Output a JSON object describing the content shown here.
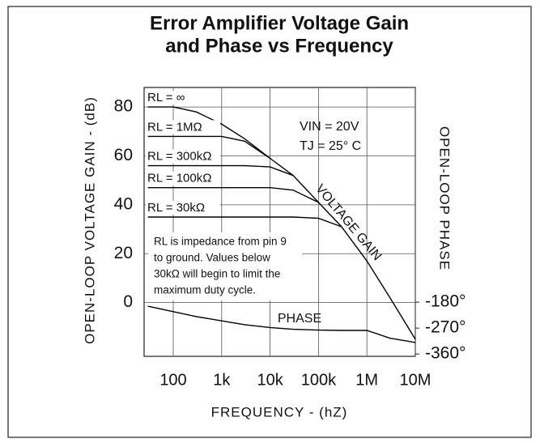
{
  "chart_data": {
    "type": "line",
    "title": "Error Amplifier Voltage Gain",
    "subtitle": "and Phase vs Frequency",
    "x_label": "FREQUENCY  -  (hZ)",
    "y_label": "OPEN-LOOP  VOLTAGE  GAIN  -  (dB)",
    "y2_label": "OPEN-LOOP  PHASE",
    "x_log": true,
    "grid": true,
    "x": [
      30,
      100,
      300,
      1000,
      3000,
      10000,
      30000,
      100000,
      300000,
      1000000,
      3000000,
      10000000
    ],
    "xlim": [
      25,
      10000000
    ],
    "xticks": [
      100,
      {
        "value": 1000,
        "label": "1k"
      },
      {
        "value": 10000,
        "label": "10k"
      },
      {
        "value": 100000,
        "label": "100k"
      },
      {
        "value": 1000000,
        "label": "1M"
      },
      {
        "value": 10000000,
        "label": "10M"
      }
    ],
    "ylim": [
      -22,
      88
    ],
    "yticks": [
      0,
      20,
      40,
      60,
      80
    ],
    "y2lim": [
      -368,
      565
    ],
    "y2ticks": [
      {
        "value": -180,
        "label": "-180°"
      },
      {
        "value": -270,
        "label": "-270°"
      },
      {
        "value": -360,
        "label": "-360°"
      }
    ],
    "series": [
      {
        "name": "RL = ∞",
        "color": "#000000",
        "values": [
          80,
          80,
          78,
          73,
          67,
          59,
          52,
          41,
          31,
          17,
          2,
          -15
        ]
      },
      {
        "name": "RL = 1MΩ",
        "color": "#000000",
        "values": [
          68,
          68,
          68,
          68,
          66,
          59,
          null,
          null,
          null,
          null,
          null,
          null
        ]
      },
      {
        "name": "RL = 300kΩ",
        "color": "#000000",
        "values": [
          56,
          56,
          56,
          56,
          56,
          55.5,
          52,
          null,
          null,
          null,
          null,
          null
        ]
      },
      {
        "name": "RL = 100kΩ",
        "color": "#000000",
        "values": [
          47,
          47,
          47,
          47,
          47,
          47,
          46,
          41,
          null,
          null,
          null,
          null
        ]
      },
      {
        "name": "RL = 30kΩ",
        "color": "#000000",
        "values": [
          35,
          35,
          35,
          35,
          35,
          35,
          35,
          34.5,
          31,
          null,
          null,
          null
        ]
      },
      {
        "name": "PHASE",
        "color": "#000000",
        "axis": "y2",
        "values": [
          -194,
          -213,
          -230,
          -245,
          -258,
          -268,
          -274,
          -277,
          -278,
          -278,
          -305,
          -320
        ]
      }
    ],
    "annotations": [
      "VIN  =  20V",
      "TJ   =  25° C",
      "VOLTAGE  GAIN"
    ],
    "note": [
      "RL is impedance from pin 9",
      "to ground. Values below",
      "30kΩ will begin to limit the",
      "maximum duty cycle."
    ]
  }
}
